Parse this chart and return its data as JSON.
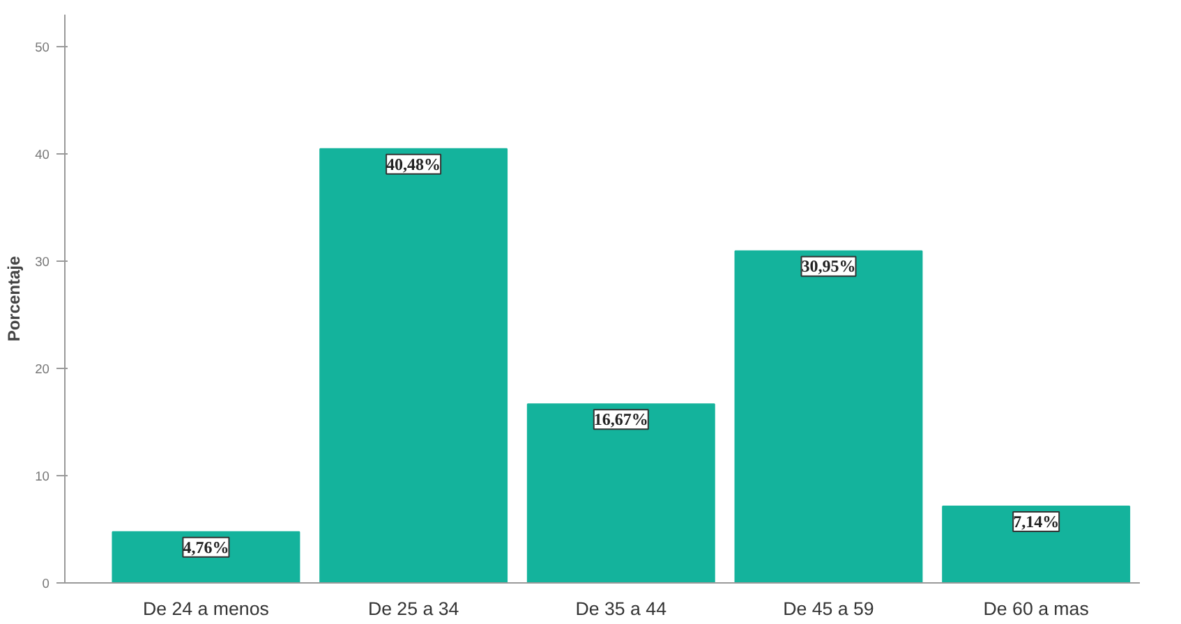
{
  "chart_data": {
    "type": "bar",
    "ylabel": "Porcentaje",
    "categories": [
      "De 24 a menos",
      "De 25 a 34",
      "De 35 a 44",
      "De 45 a 59",
      "De 60 a mas"
    ],
    "values": [
      4.76,
      40.48,
      16.67,
      30.95,
      7.14
    ],
    "value_labels": [
      "4,76%",
      "40,48%",
      "16,67%",
      "30,95%",
      "7,14%"
    ],
    "color": "#14b39c",
    "ylim": [
      0,
      53
    ],
    "yticks": [
      0,
      10,
      20,
      30,
      40,
      50
    ],
    "grid": false
  }
}
